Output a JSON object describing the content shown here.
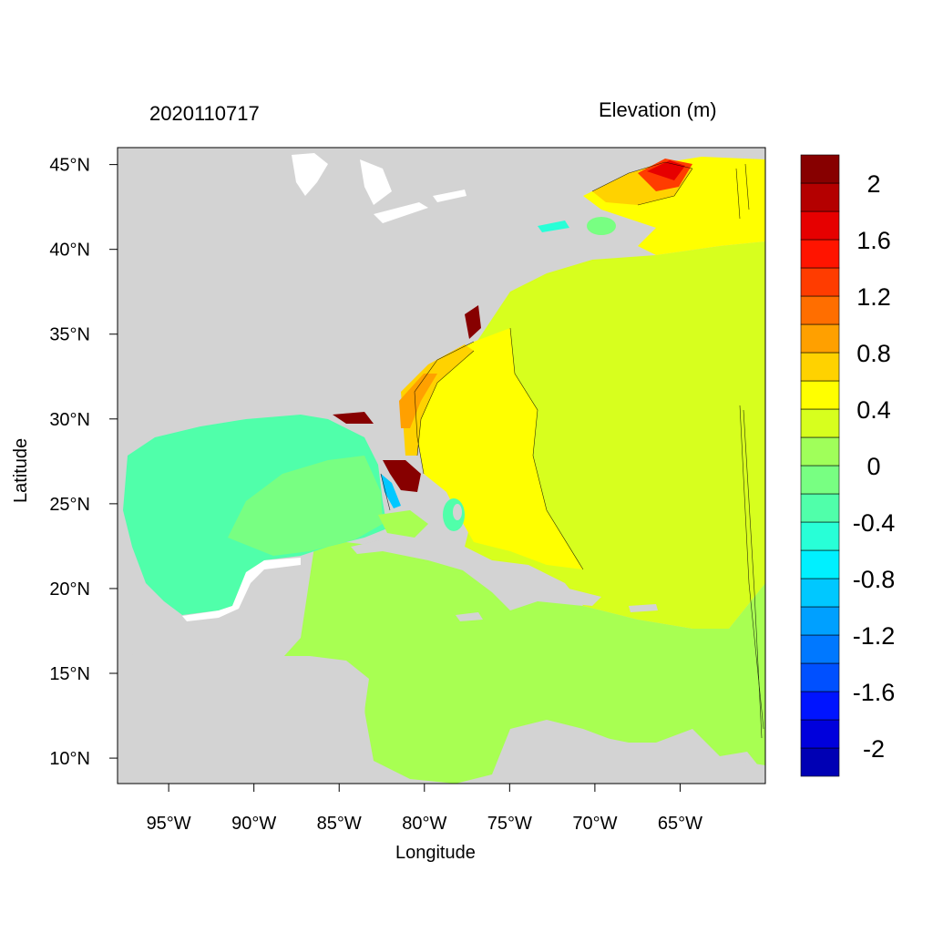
{
  "title_left": "2020110717",
  "title_right": "Elevation (m)",
  "xlabel": "Longitude",
  "ylabel": "Latitude",
  "map": {
    "lon_range": [
      -98,
      -60
    ],
    "lat_range": [
      8.5,
      46
    ],
    "x_ticks": [
      {
        "lon": -95,
        "label": "95°W"
      },
      {
        "lon": -90,
        "label": "90°W"
      },
      {
        "lon": -85,
        "label": "85°W"
      },
      {
        "lon": -80,
        "label": "80°W"
      },
      {
        "lon": -75,
        "label": "75°W"
      },
      {
        "lon": -70,
        "label": "70°W"
      },
      {
        "lon": -65,
        "label": "65°W"
      }
    ],
    "y_ticks": [
      {
        "lat": 45,
        "label": "45°N"
      },
      {
        "lat": 40,
        "label": "40°N"
      },
      {
        "lat": 35,
        "label": "35°N"
      },
      {
        "lat": 30,
        "label": "30°N"
      },
      {
        "lat": 25,
        "label": "25°N"
      },
      {
        "lat": 20,
        "label": "20°N"
      },
      {
        "lat": 15,
        "label": "15°N"
      },
      {
        "lat": 10,
        "label": "10°N"
      }
    ],
    "land_color": "#d3d3d3"
  },
  "colorbar": {
    "colors": [
      "#0000b4",
      "#0000dc",
      "#0014ff",
      "#0050ff",
      "#0078ff",
      "#00a0ff",
      "#00c8ff",
      "#00f0ff",
      "#28ffd7",
      "#50ffaa",
      "#78ff82",
      "#a0ff5a",
      "#d7ff1e",
      "#ffff00",
      "#ffd200",
      "#ffa000",
      "#ff6e00",
      "#ff3c00",
      "#ff1400",
      "#e60000",
      "#b40000",
      "#870000"
    ],
    "labels": [
      "2",
      "1.6",
      "1.2",
      "0.8",
      "0.4",
      "0",
      "-0.4",
      "-0.8",
      "-1.2",
      "-1.6",
      "-2"
    ]
  }
}
